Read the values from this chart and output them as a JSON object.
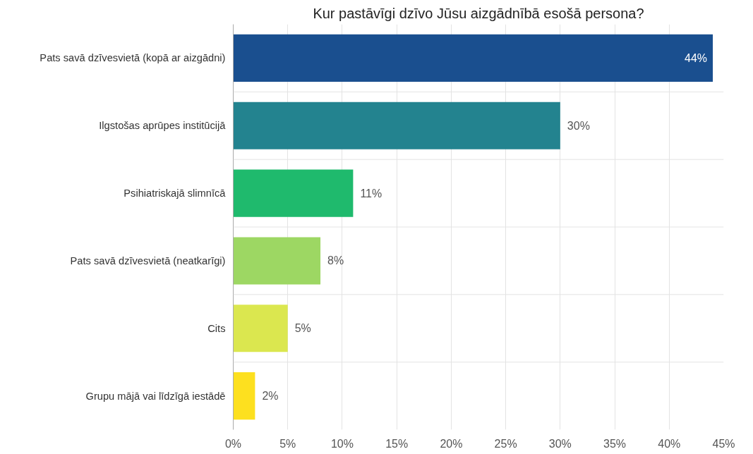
{
  "chart_data": {
    "type": "bar",
    "orientation": "horizontal",
    "title": "Kur pastāvīgi dzīvo Jūsu aizgādnībā esošā persona?",
    "categories": [
      "Pats savā dzīvesvietā (kopā ar aizgādni)",
      "Ilgstošas aprūpes institūcijā",
      "Psihiatriskajā slimnīcā",
      "Pats savā dzīvesvietā (neatkarīgi)",
      "Cits",
      "Grupu mājā vai līdzīgā iestādē"
    ],
    "values": [
      44,
      30,
      11,
      8,
      5,
      2
    ],
    "value_labels": [
      "44%",
      "30%",
      "11%",
      "8%",
      "5%",
      "2%"
    ],
    "colors": [
      "#1a4f8f",
      "#23838f",
      "#1fba6d",
      "#9dd763",
      "#dbe74f",
      "#fde01f"
    ],
    "xlim": [
      0,
      45
    ],
    "xticks": [
      {
        "value": 0,
        "label": "0%"
      },
      {
        "value": 5,
        "label": "5%"
      },
      {
        "value": 10,
        "label": "10%"
      },
      {
        "value": 15,
        "label": "15%"
      },
      {
        "value": 20,
        "label": "20%"
      },
      {
        "value": 25,
        "label": "25%"
      },
      {
        "value": 30,
        "label": "30%"
      },
      {
        "value": 35,
        "label": "35%"
      },
      {
        "value": 40,
        "label": "40%"
      },
      {
        "value": 45,
        "label": "45%"
      }
    ],
    "grid": true,
    "legend": false
  }
}
